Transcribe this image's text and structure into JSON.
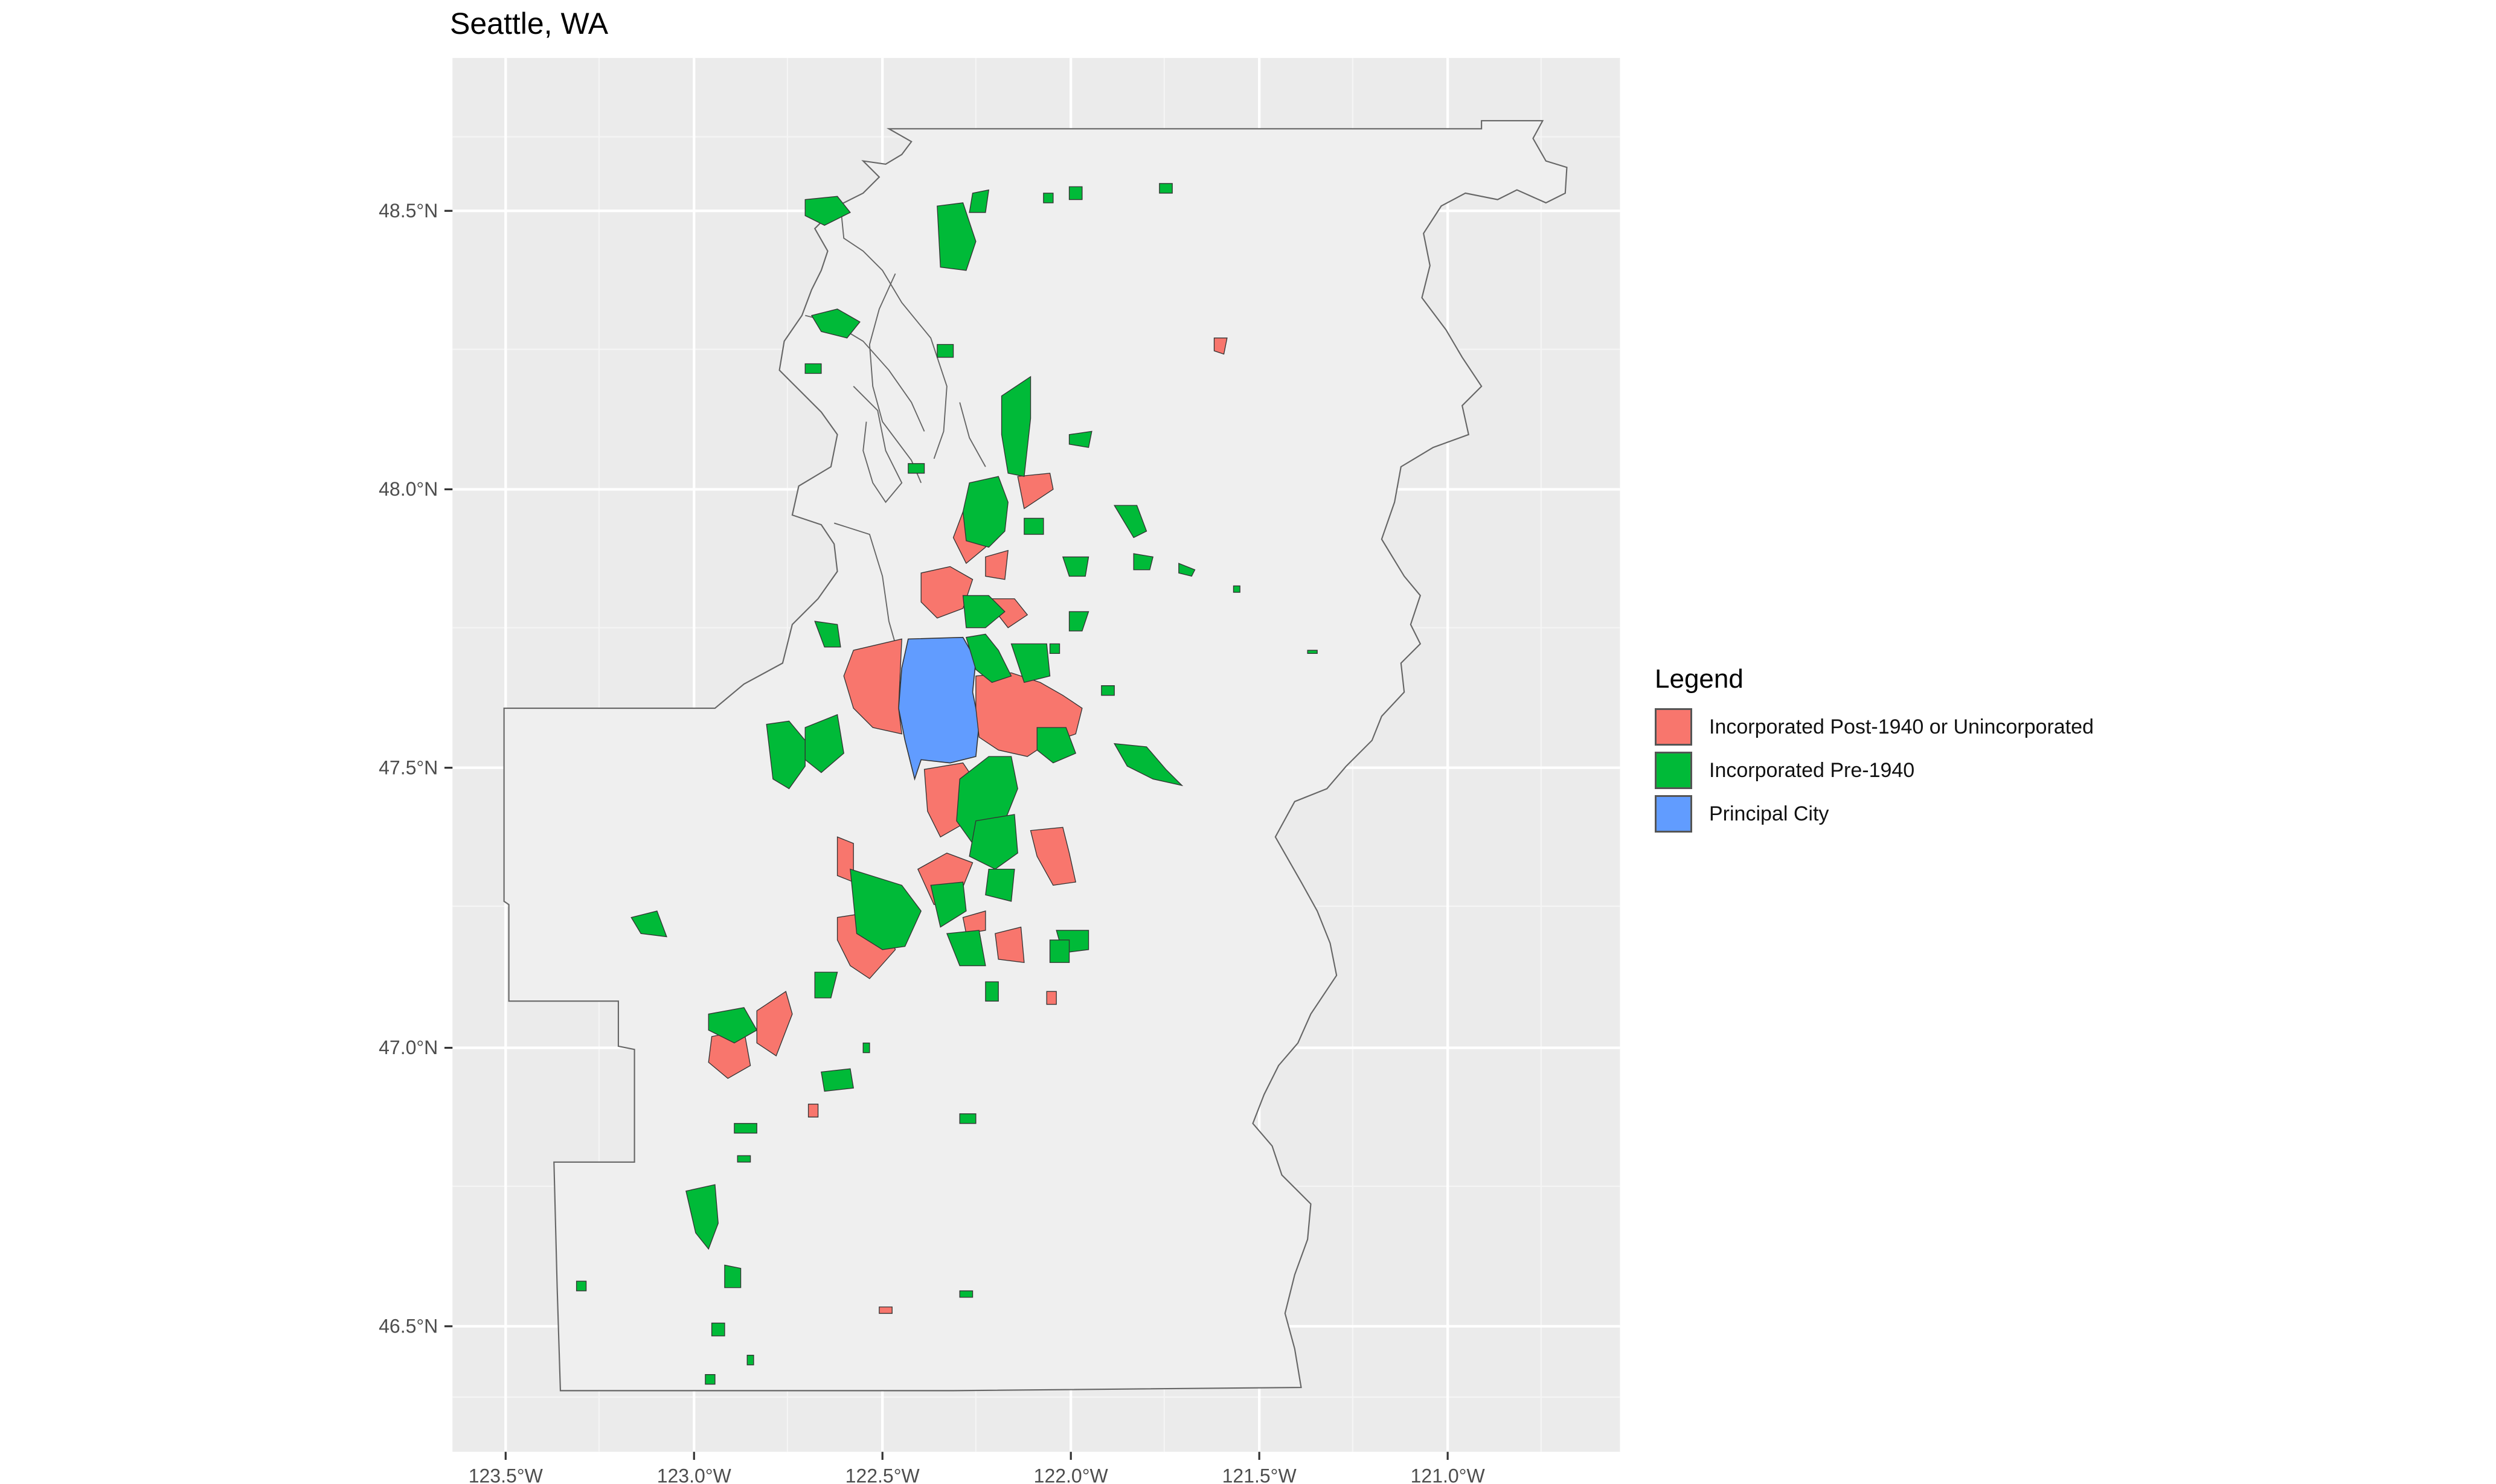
{
  "title": "Seattle, WA",
  "colors": {
    "panel": "#ebebeb",
    "land": "#efefef",
    "grid": "#ffffff",
    "post1940": "#f8766d",
    "pre1940": "#00ba38",
    "principal": "#619cff"
  },
  "axes": {
    "x_ticks": [
      "123.5°W",
      "123.0°W",
      "122.5°W",
      "122.0°W",
      "121.5°W",
      "121.0°W"
    ],
    "y_ticks": [
      "48.5°N",
      "48.0°N",
      "47.5°N",
      "47.0°N",
      "46.5°N"
    ]
  },
  "legend": {
    "title": "Legend",
    "items": [
      {
        "label": "Incorporated Post-1940 or Unincorporated",
        "color": "#f8766d"
      },
      {
        "label": "Incorporated Pre-1940",
        "color": "#00ba38"
      },
      {
        "label": "Principal City",
        "color": "#619cff"
      }
    ]
  }
}
